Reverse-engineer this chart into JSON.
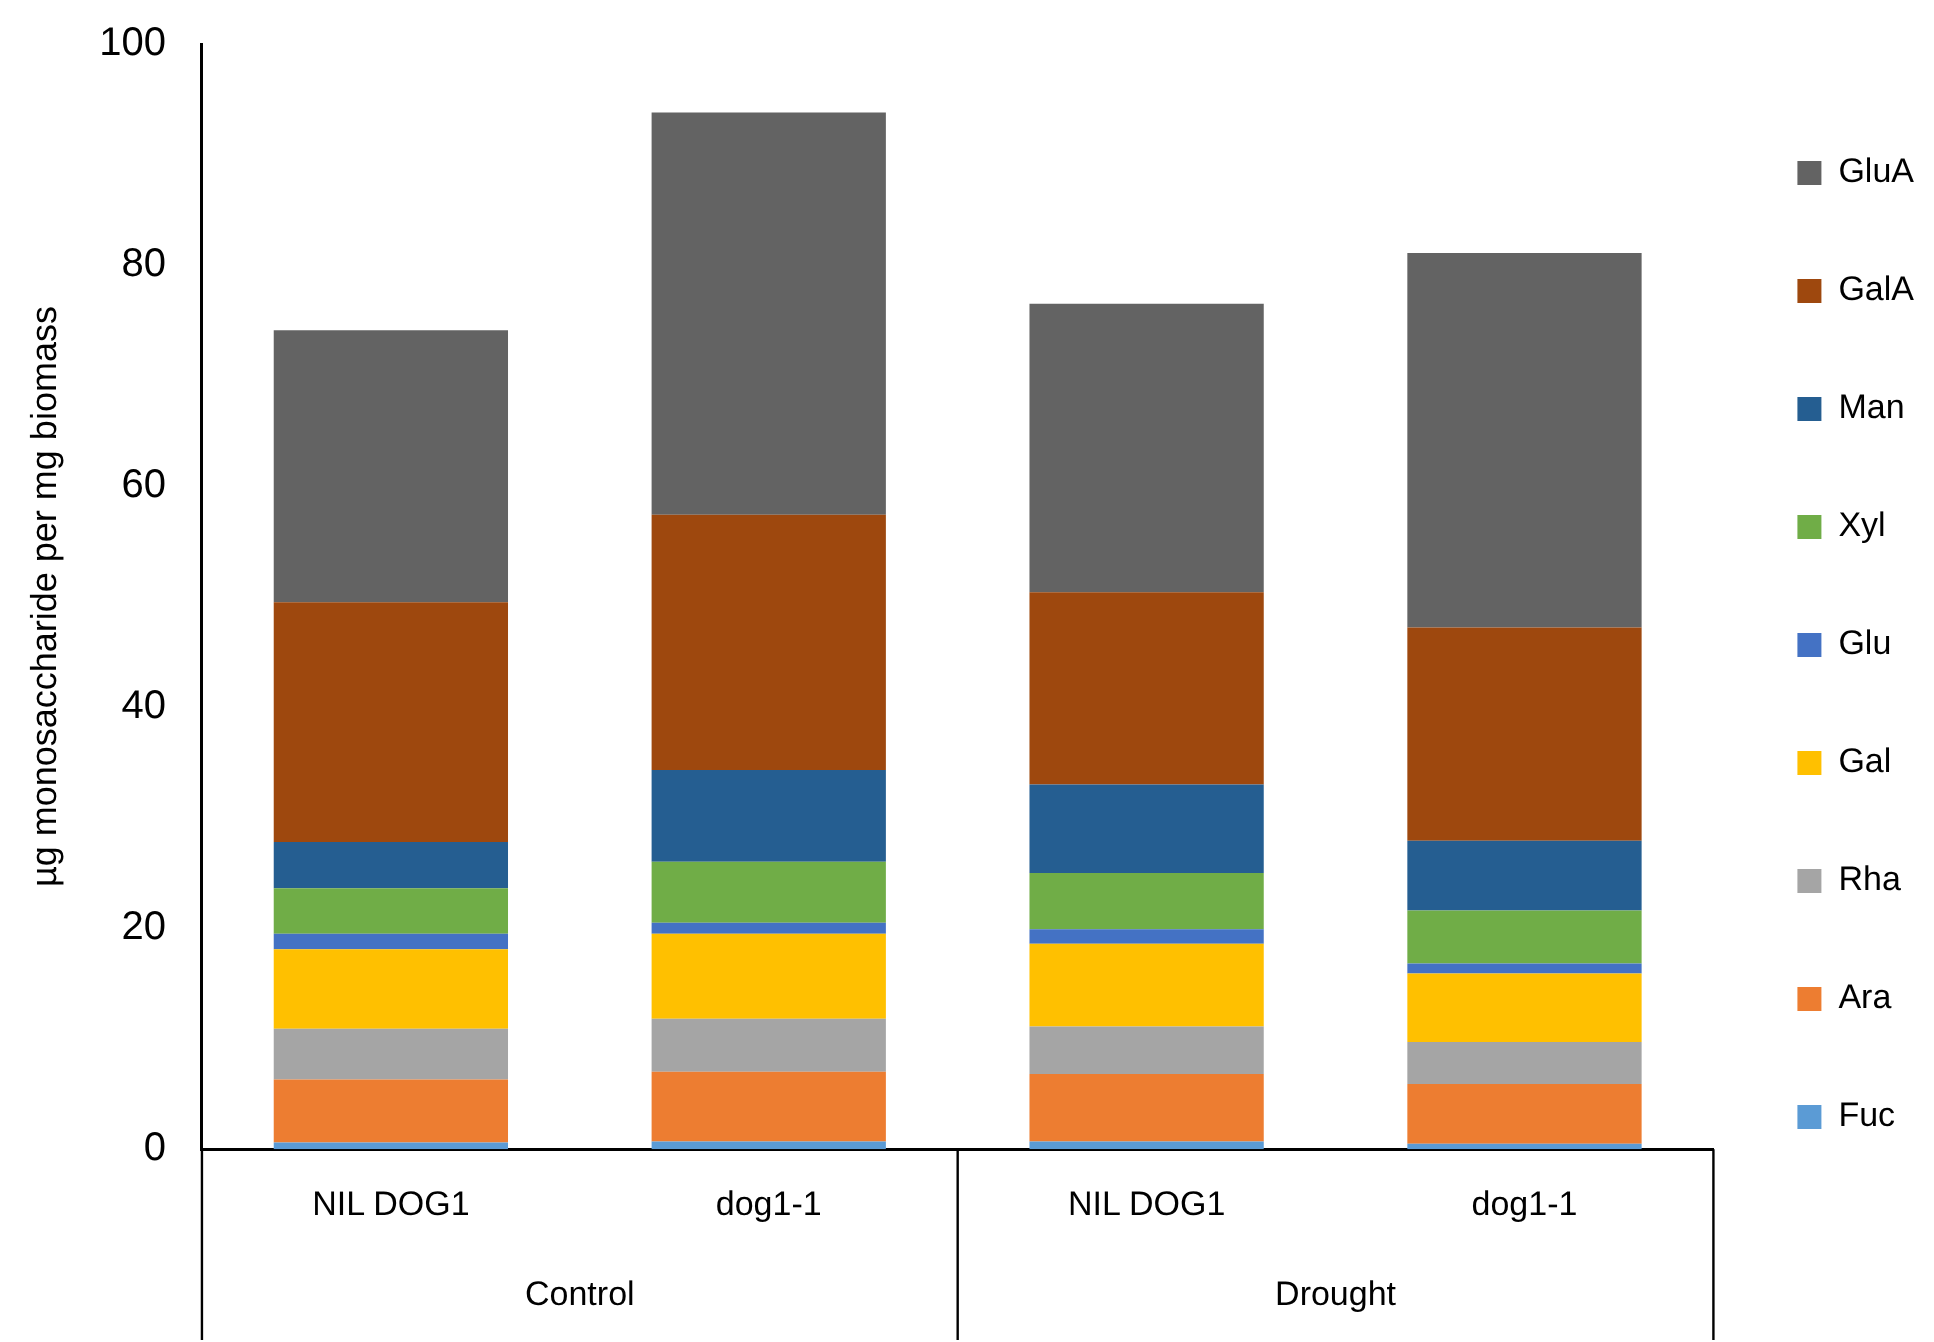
{
  "chart_data": {
    "type": "bar",
    "stacked": true,
    "ylabel": "µg monosaccharide per mg biomass",
    "categories": [
      "NIL DOG1",
      "dog1-1",
      "NIL DOG1",
      "dog1-1"
    ],
    "annotations": [
      "Control",
      "Drought"
    ],
    "ylim": [
      0,
      100
    ],
    "yticks": [
      0,
      20,
      40,
      60,
      80,
      100
    ],
    "grid": false,
    "legend": "right",
    "series": [
      {
        "name": "Fuc",
        "color": "#5b9bd5",
        "values": [
          0.6,
          0.7,
          0.7,
          0.5
        ]
      },
      {
        "name": "Ara",
        "color": "#ed7d31",
        "values": [
          5.7,
          6.3,
          6.1,
          5.4
        ]
      },
      {
        "name": "Rha",
        "color": "#a5a5a5",
        "values": [
          4.6,
          4.8,
          4.3,
          3.8
        ]
      },
      {
        "name": "Gal",
        "color": "#ffc000",
        "values": [
          7.2,
          7.7,
          7.5,
          6.2
        ]
      },
      {
        "name": "Glu",
        "color": "#4472c4",
        "values": [
          1.4,
          1.0,
          1.3,
          0.9
        ]
      },
      {
        "name": "Xyl",
        "color": "#70ad47",
        "values": [
          4.1,
          5.5,
          5.1,
          4.8
        ]
      },
      {
        "name": "Man",
        "color": "#255e91",
        "values": [
          4.2,
          8.3,
          8.0,
          6.3
        ]
      },
      {
        "name": "GalA",
        "color": "#9e480e",
        "values": [
          21.7,
          23.1,
          17.4,
          19.3
        ]
      },
      {
        "name": "GluA",
        "color": "#636363",
        "values": [
          24.6,
          36.4,
          26.1,
          33.9
        ]
      }
    ]
  }
}
